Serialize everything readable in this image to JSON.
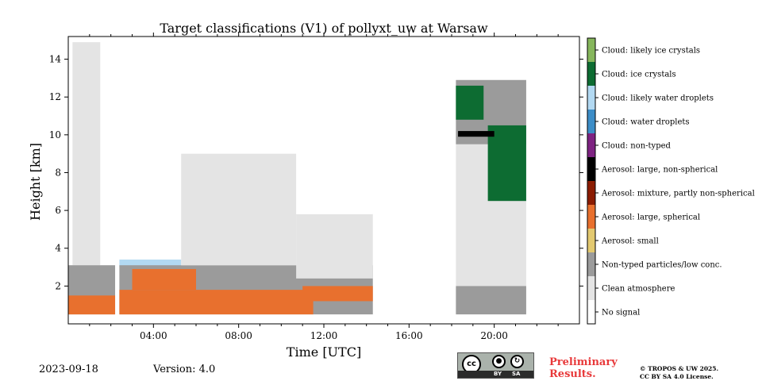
{
  "chart_data": {
    "type": "heatmap",
    "title": "Target classifications (V1) of pollyxt_uw at Warsaw",
    "xlabel": "Time [UTC]",
    "ylabel": "Height [km]",
    "xlim_hours": [
      0,
      24
    ],
    "ylim_km": [
      0,
      15.2
    ],
    "x_ticks": [
      {
        "hour": 4,
        "label": "04:00"
      },
      {
        "hour": 8,
        "label": "08:00"
      },
      {
        "hour": 12,
        "label": "12:00"
      },
      {
        "hour": 16,
        "label": "16:00"
      },
      {
        "hour": 20,
        "label": "20:00"
      }
    ],
    "x_minor_ticks_hours": [
      1,
      2,
      3,
      5,
      6,
      7,
      9,
      10,
      11,
      13,
      14,
      15,
      17,
      18,
      19,
      21,
      22,
      23
    ],
    "y_ticks": [
      2,
      4,
      6,
      8,
      10,
      12,
      14
    ],
    "colorbar": [
      {
        "code": 0,
        "label": "No signal",
        "color": "#ffffff"
      },
      {
        "code": 1,
        "label": "Clean atmosphere",
        "color": "#e4e4e4"
      },
      {
        "code": 2,
        "label": "Non-typed particles/low conc.",
        "color": "#9b9b9b"
      },
      {
        "code": 3,
        "label": "Aerosol: small",
        "color": "#e3c970"
      },
      {
        "code": 4,
        "label": "Aerosol: large, spherical",
        "color": "#e8702e"
      },
      {
        "code": 5,
        "label": "Aerosol: mixture, partly non-spherical",
        "color": "#8b1c02"
      },
      {
        "code": 6,
        "label": "Aerosol: large, non-spherical",
        "color": "#000000"
      },
      {
        "code": 7,
        "label": "Cloud: non-typed",
        "color": "#7e2382"
      },
      {
        "code": 8,
        "label": "Cloud: water droplets",
        "color": "#3c8dc7"
      },
      {
        "code": 9,
        "label": "Cloud: likely water droplets",
        "color": "#b2d9f2"
      },
      {
        "code": 10,
        "label": "Cloud: ice crystals",
        "color": "#0d6c32"
      },
      {
        "code": 11,
        "label": "Cloud: likely ice crystals",
        "color": "#86b65c"
      }
    ],
    "regions": [
      {
        "class": 1,
        "t": [
          0.2,
          1.5
        ],
        "h": [
          3.1,
          14.9
        ]
      },
      {
        "class": 2,
        "t": [
          0.0,
          2.2
        ],
        "h": [
          0.5,
          3.1
        ]
      },
      {
        "class": 4,
        "t": [
          0.0,
          2.2
        ],
        "h": [
          0.5,
          1.5
        ]
      },
      {
        "class": 9,
        "t": [
          2.4,
          5.3
        ],
        "h": [
          3.0,
          3.4
        ]
      },
      {
        "class": 2,
        "t": [
          2.4,
          14.3
        ],
        "h": [
          0.5,
          3.1
        ]
      },
      {
        "class": 4,
        "t": [
          2.4,
          11.5
        ],
        "h": [
          0.5,
          1.8
        ]
      },
      {
        "class": 4,
        "t": [
          3.0,
          6.0
        ],
        "h": [
          1.8,
          2.9
        ]
      },
      {
        "class": 1,
        "t": [
          5.3,
          10.7
        ],
        "h": [
          3.1,
          9.0
        ]
      },
      {
        "class": 1,
        "t": [
          10.7,
          14.3
        ],
        "h": [
          2.4,
          5.8
        ]
      },
      {
        "class": 4,
        "t": [
          11.0,
          14.3
        ],
        "h": [
          1.2,
          2.0
        ]
      },
      {
        "class": 1,
        "t": [
          18.2,
          21.5
        ],
        "h": [
          2.0,
          9.5
        ]
      },
      {
        "class": 2,
        "t": [
          18.2,
          21.5
        ],
        "h": [
          0.5,
          2.0
        ]
      },
      {
        "class": 2,
        "t": [
          18.2,
          21.5
        ],
        "h": [
          9.5,
          12.9
        ]
      },
      {
        "class": 10,
        "t": [
          18.2,
          19.5
        ],
        "h": [
          10.8,
          12.6
        ]
      },
      {
        "class": 10,
        "t": [
          19.7,
          21.5
        ],
        "h": [
          6.5,
          10.5
        ]
      },
      {
        "class": 6,
        "t": [
          18.3,
          20.0
        ],
        "h": [
          9.9,
          10.2
        ]
      }
    ]
  },
  "footer": {
    "date": "2023-09-18",
    "version": "Version: 4.0",
    "preliminary": [
      "Preliminary",
      "Results."
    ],
    "copyright": [
      "© TROPOS & UW 2025.",
      "CC BY SA 4.0 License."
    ],
    "license_badge": {
      "circle": "cc",
      "by": "BY",
      "sa": "SA"
    }
  }
}
